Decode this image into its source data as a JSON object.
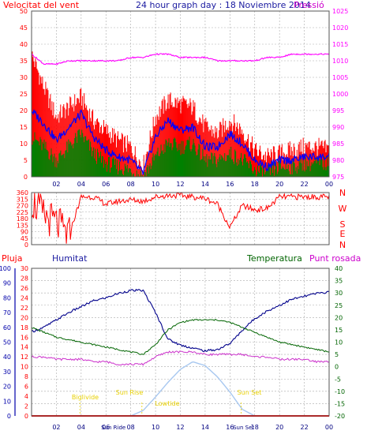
{
  "header": {
    "left": "Velocitat del vent",
    "center": "24 hour graph day : 18 Noviembre 2014",
    "right": "Pressió"
  },
  "colors": {
    "wind": "#ff0000",
    "avg": "#0000ff",
    "gust": "#008000",
    "pressure": "#ff00ff",
    "humidity": "#00008b",
    "temperature": "#006400",
    "dew": "#cc33cc",
    "rain": "#ff0000",
    "solar": "#a8c8f0",
    "sun_label": "#e8d000"
  },
  "x_ticks": [
    "02",
    "04",
    "06",
    "08",
    "10",
    "12",
    "14",
    "16",
    "18",
    "20",
    "22",
    "00"
  ],
  "chart_data": [
    {
      "type": "line",
      "ylabel": "Velocitat del vent",
      "y2label": "Pressió",
      "ylim": [
        0,
        50
      ],
      "y2lim": [
        975,
        1025
      ],
      "y_ticks": [
        0,
        5,
        10,
        15,
        20,
        25,
        30,
        35,
        40,
        45,
        50
      ],
      "y2_ticks": [
        975,
        980,
        985,
        990,
        995,
        1000,
        1005,
        1010,
        1015,
        1020,
        1025
      ],
      "x": [
        "00",
        "01",
        "02",
        "03",
        "04",
        "05",
        "06",
        "07",
        "08",
        "09",
        "10",
        "11",
        "12",
        "13",
        "14",
        "15",
        "16",
        "17",
        "18",
        "19",
        "20",
        "21",
        "22",
        "23",
        "00"
      ],
      "series": [
        {
          "name": "max",
          "values": [
            37,
            27,
            18,
            21,
            24,
            17,
            14,
            11,
            9,
            3,
            18,
            23,
            22,
            21,
            15,
            13,
            17,
            14,
            8,
            6,
            7,
            8,
            9,
            9,
            8
          ]
        },
        {
          "name": "avg",
          "values": [
            20,
            16,
            11,
            15,
            19,
            12,
            8,
            6,
            5,
            1,
            12,
            17,
            14,
            15,
            9,
            9,
            13,
            10,
            5,
            3,
            5,
            5,
            6,
            6,
            6
          ]
        },
        {
          "name": "min",
          "values": [
            12,
            9,
            5,
            9,
            13,
            7,
            4,
            3,
            2,
            0,
            6,
            10,
            9,
            10,
            5,
            5,
            7,
            5,
            2,
            1,
            3,
            3,
            4,
            4,
            4
          ]
        },
        {
          "name": "pressure",
          "values": [
            1012,
            1009,
            1009,
            1010,
            1010,
            1010,
            1010,
            1010,
            1011,
            1011,
            1012,
            1012,
            1011,
            1011,
            1011,
            1010,
            1010,
            1010,
            1010,
            1011,
            1011,
            1012,
            1012,
            1012,
            1012
          ]
        }
      ]
    },
    {
      "type": "line",
      "right_labels": [
        "N",
        "W",
        "S",
        "E",
        "N"
      ],
      "ylim": [
        0,
        360
      ],
      "y_ticks": [
        0,
        45,
        90,
        135,
        180,
        225,
        270,
        315,
        360
      ],
      "series": [
        {
          "name": "direction",
          "values": [
            300,
            200,
            150,
            60,
            330,
            330,
            280,
            300,
            310,
            300,
            330,
            340,
            340,
            330,
            320,
            280,
            120,
            270,
            240,
            250,
            330,
            330,
            330,
            330,
            330
          ]
        }
      ]
    },
    {
      "type": "line",
      "legend": [
        "Pluja",
        "Humitat",
        "Temperatura",
        "Punt rosada"
      ],
      "humidity_ticks": [
        0,
        10,
        20,
        30,
        40,
        50,
        60,
        70,
        80,
        90,
        100
      ],
      "rain_ticks": [
        0,
        2,
        4,
        6,
        8,
        10,
        12,
        14,
        16,
        18,
        20,
        22,
        24,
        26,
        28,
        30
      ],
      "temp_ticks": [
        -20,
        -15,
        -10,
        -5,
        0,
        5,
        10,
        15,
        20,
        25,
        30,
        35,
        40
      ],
      "x": [
        "00",
        "01",
        "02",
        "03",
        "04",
        "05",
        "06",
        "07",
        "08",
        "09",
        "10",
        "11",
        "12",
        "13",
        "14",
        "15",
        "16",
        "17",
        "18",
        "19",
        "20",
        "21",
        "22",
        "23",
        "00"
      ],
      "series": [
        {
          "name": "Humitat",
          "values": [
            57,
            60,
            65,
            70,
            74,
            78,
            80,
            83,
            85,
            85,
            70,
            52,
            48,
            46,
            44,
            45,
            49,
            58,
            66,
            71,
            75,
            79,
            81,
            83,
            84
          ]
        },
        {
          "name": "Temperatura",
          "values": [
            16,
            14,
            12,
            11,
            10,
            9,
            8,
            7,
            6,
            5,
            9,
            15,
            18,
            19,
            19,
            19,
            18,
            16,
            14,
            12,
            10,
            9,
            8,
            7,
            6
          ]
        },
        {
          "name": "Punt rosada",
          "values": [
            4,
            4,
            3,
            3,
            3,
            2,
            2,
            1,
            1,
            1,
            4,
            6,
            6,
            6,
            5,
            5,
            5,
            5,
            4,
            4,
            3,
            3,
            3,
            2,
            2
          ]
        },
        {
          "name": "Pluja",
          "values": [
            0,
            0,
            0,
            0,
            0,
            0,
            0,
            0,
            0,
            0,
            0,
            0,
            0,
            0,
            0,
            0,
            0,
            0,
            0,
            0,
            0,
            0,
            0,
            0,
            0
          ]
        },
        {
          "name": "Solar",
          "values": [
            0,
            0,
            0,
            0,
            0,
            0,
            0,
            0,
            0,
            0.1,
            0.35,
            0.62,
            0.86,
            1,
            0.93,
            0.72,
            0.44,
            0.12,
            0,
            0,
            0,
            0,
            0,
            0,
            0
          ]
        }
      ],
      "sun_labels": {
        "first_light": "Biglivide",
        "sunrise": "Sun Rise",
        "noon": "Lowtide",
        "sunset": "Sun Set",
        "rise_x": "Sun Ride",
        "set_x": "Sun Set"
      }
    }
  ]
}
